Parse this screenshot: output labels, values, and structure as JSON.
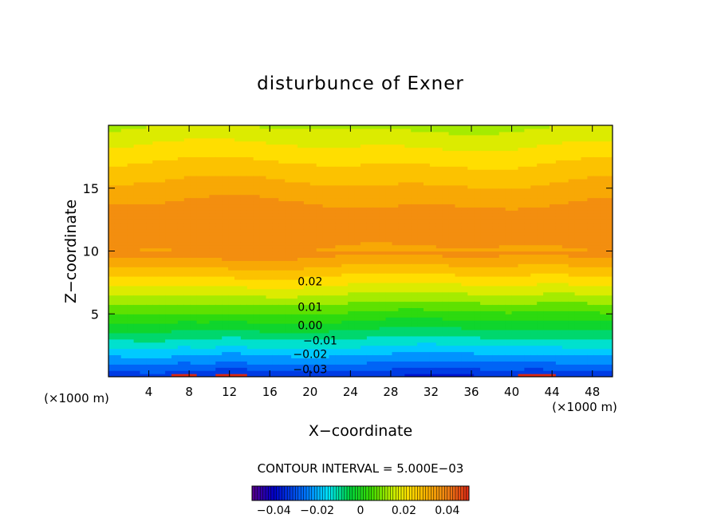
{
  "chart_data": {
    "type": "heatmap",
    "title": "disturbunce of Exner",
    "xlabel": "X−coordinate",
    "ylabel": "Z−coordinate",
    "x_unit_left": "(×1000 m)",
    "x_unit_right": "(×1000 m)",
    "xlim": [
      0,
      50
    ],
    "ylim": [
      0,
      20
    ],
    "x_ticks": [
      "4",
      "8",
      "12",
      "16",
      "20",
      "24",
      "28",
      "32",
      "36",
      "40",
      "44",
      "48"
    ],
    "x_tick_values": [
      4,
      8,
      12,
      16,
      20,
      24,
      28,
      32,
      36,
      40,
      44,
      48
    ],
    "y_ticks": [
      "5",
      "10",
      "15"
    ],
    "y_tick_values": [
      5,
      10,
      15
    ],
    "contour_interval_text": "CONTOUR INTERVAL = 5.000E−03",
    "contour_interval": 0.005,
    "color_range": [
      -0.05,
      0.05
    ],
    "colorbar_ticks": [
      "−0.04",
      "−0.02",
      "0",
      "0.02",
      "0.04"
    ],
    "colorbar_tick_values": [
      -0.04,
      -0.02,
      0,
      0.02,
      0.04
    ],
    "field_description": "Exner perturbation, negative near ground (about -0.035), passing through zero near z = 4.5 km, maximum about +0.038 at z = 12 km, decreasing slightly toward model top; small humps over x = 7 km and x = 12 km and x = 42 km",
    "contour_labels": [
      {
        "text": "0.02",
        "value": 0.02,
        "x": 20.0,
        "z": 7.6
      },
      {
        "text": "0.01",
        "value": 0.01,
        "x": 20.0,
        "z": 5.55
      },
      {
        "text": "0.00",
        "value": 0.0,
        "x": 20.0,
        "z": 4.1
      },
      {
        "text": "−0.01",
        "value": -0.01,
        "x": 21.0,
        "z": 2.9
      },
      {
        "text": "−0.02",
        "value": -0.02,
        "x": 20.0,
        "z": 1.8
      },
      {
        "text": "−0.03",
        "value": -0.03,
        "x": 20.0,
        "z": 0.6
      }
    ],
    "colors": {
      "axis": "#000000",
      "background": "#ffffff",
      "deep_blue": "#0000c8",
      "cyan": "#00e6ff",
      "green": "#00d200",
      "yellow": "#ffe600",
      "orange": "#f5a000",
      "dark_orange": "#f08a14"
    }
  }
}
